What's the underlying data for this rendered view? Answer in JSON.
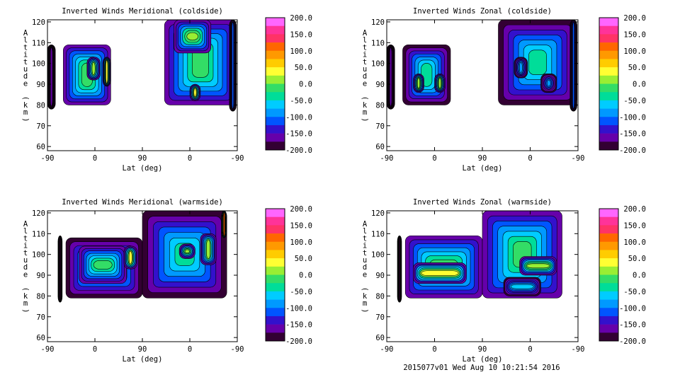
{
  "footer": "2015077v01 Wed Aug 10 10:21:54 2016",
  "colorbar": {
    "labels": [
      "200.0",
      "150.0",
      "100.0",
      "50.0",
      "0.0",
      "-50.0",
      "-100.0",
      "-150.0",
      "-200.0"
    ],
    "colors": [
      "#ff66ff",
      "#ff3399",
      "#ff3366",
      "#ff6600",
      "#ff9900",
      "#ffcc00",
      "#ffff33",
      "#99ee33",
      "#33dd66",
      "#00dd99",
      "#00ccff",
      "#0099ff",
      "#0055ff",
      "#3311cc",
      "#6600aa",
      "#330033"
    ]
  },
  "chart_data": [
    {
      "type": "heatmap",
      "title": "Inverted Winds Meridional (coldside)",
      "xlabel": "Lat (deg)",
      "ylabel": "Altitude (km)",
      "xtick_labels": [
        "-90",
        "0",
        "90",
        "0",
        "-90"
      ],
      "yticks": [
        60,
        70,
        80,
        90,
        100,
        110,
        120
      ],
      "ylim": [
        58,
        121
      ],
      "colorbar_range": [
        -200,
        200
      ],
      "blobs": [
        {
          "x0": -90,
          "x1": -75,
          "y0": 78,
          "y1": 109,
          "v": -170
        },
        {
          "x0": -60,
          "x1": 30,
          "y0": 80,
          "y1": 109,
          "v": -20
        },
        {
          "x0": -15,
          "x1": 10,
          "y0": 92,
          "y1": 103,
          "v": 10
        },
        {
          "x0": 15,
          "x1": 30,
          "y0": 89,
          "y1": 103,
          "v": 40
        },
        {
          "x0": 132,
          "x1": 268,
          "y0": 80,
          "y1": 121,
          "v": -20
        },
        {
          "x0": 150,
          "x1": 220,
          "y0": 105,
          "y1": 121,
          "v": 15
        },
        {
          "x0": 180,
          "x1": 200,
          "y0": 82,
          "y1": 90,
          "v": 40
        },
        {
          "x0": 255,
          "x1": 268,
          "y0": 77,
          "y1": 121,
          "v": -120
        }
      ]
    },
    {
      "type": "heatmap",
      "title": "Inverted Winds Zonal (coldside)",
      "xlabel": "Lat (deg)",
      "ylabel": "Altitude (km)",
      "xtick_labels": [
        "-90",
        "0",
        "90",
        "0",
        "-90"
      ],
      "yticks": [
        60,
        70,
        80,
        90,
        100,
        110,
        120
      ],
      "ylim": [
        58,
        121
      ],
      "colorbar_range": [
        -200,
        200
      ],
      "blobs": [
        {
          "x0": -90,
          "x1": -75,
          "y0": 78,
          "y1": 109,
          "v": -170
        },
        {
          "x0": -60,
          "x1": 30,
          "y0": 80,
          "y1": 109,
          "v": -30
        },
        {
          "x0": -40,
          "x1": -20,
          "y0": 86,
          "y1": 95,
          "v": 15
        },
        {
          "x0": 0,
          "x1": 20,
          "y0": 86,
          "y1": 95,
          "v": 15
        },
        {
          "x0": 120,
          "x1": 268,
          "y0": 80,
          "y1": 121,
          "v": -35
        },
        {
          "x0": 150,
          "x1": 175,
          "y0": 93,
          "y1": 103,
          "v": -80
        },
        {
          "x0": 200,
          "x1": 230,
          "y0": 86,
          "y1": 95,
          "v": -90
        },
        {
          "x0": 255,
          "x1": 268,
          "y0": 77,
          "y1": 121,
          "v": -120
        }
      ]
    },
    {
      "type": "heatmap",
      "title": "Inverted Winds Meridional (warmside)",
      "xlabel": "Lat (deg)",
      "ylabel": "Altitude (km)",
      "xtick_labels": [
        "-90",
        "0",
        "90",
        "0",
        "-90"
      ],
      "yticks": [
        60,
        70,
        80,
        90,
        100,
        110,
        120
      ],
      "ylim": [
        58,
        121
      ],
      "colorbar_range": [
        -200,
        200
      ],
      "blobs": [
        {
          "x0": -70,
          "x1": -62,
          "y0": 77,
          "y1": 109,
          "v": -175
        },
        {
          "x0": -55,
          "x1": 90,
          "y0": 79,
          "y1": 108,
          "v": -30
        },
        {
          "x0": -30,
          "x1": 60,
          "y0": 86,
          "y1": 104,
          "v": -5
        },
        {
          "x0": 55,
          "x1": 80,
          "y0": 93,
          "y1": 104,
          "v": 35
        },
        {
          "x0": 90,
          "x1": 250,
          "y0": 79,
          "y1": 121,
          "v": -25
        },
        {
          "x0": 160,
          "x1": 190,
          "y0": 98,
          "y1": 105,
          "v": 25
        },
        {
          "x0": 200,
          "x1": 230,
          "y0": 95,
          "y1": 110,
          "v": 10
        },
        {
          "x0": 240,
          "x1": 250,
          "y0": 108,
          "y1": 121,
          "v": 120
        }
      ]
    },
    {
      "type": "heatmap",
      "title": "Inverted Winds Zonal (warmside)",
      "xlabel": "Lat (deg)",
      "ylabel": "Altitude (km)",
      "xtick_labels": [
        "-90",
        "0",
        "90",
        "0",
        "-90"
      ],
      "yticks": [
        60,
        70,
        80,
        90,
        100,
        110,
        120
      ],
      "ylim": [
        58,
        121
      ],
      "colorbar_range": [
        -200,
        200
      ],
      "blobs": [
        {
          "x0": -70,
          "x1": -62,
          "y0": 77,
          "y1": 109,
          "v": -175
        },
        {
          "x0": -55,
          "x1": 90,
          "y0": 79,
          "y1": 109,
          "v": -20
        },
        {
          "x0": -40,
          "x1": 60,
          "y0": 86,
          "y1": 96,
          "v": 35
        },
        {
          "x0": 90,
          "x1": 240,
          "y0": 79,
          "y1": 121,
          "v": -15
        },
        {
          "x0": 160,
          "x1": 230,
          "y0": 90,
          "y1": 99,
          "v": 25
        },
        {
          "x0": 130,
          "x1": 200,
          "y0": 80,
          "y1": 89,
          "v": -70
        }
      ]
    }
  ]
}
